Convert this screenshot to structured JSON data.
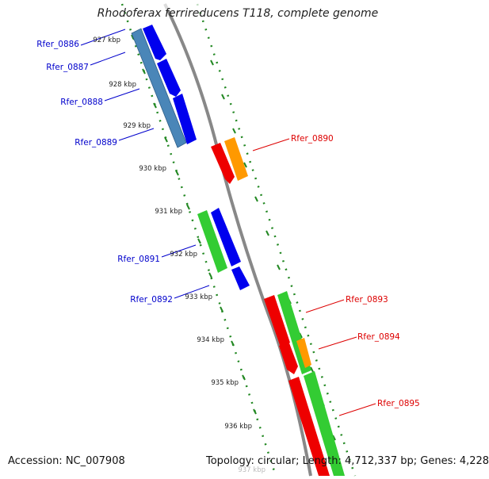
{
  "header": {
    "title": "Rhodoferax ferrireducens T118, complete genome"
  },
  "footer": {
    "accession": "Accession: NC_007908",
    "stats": "Topology: circular; Length: 4,712,337 bp; Genes: 4,228"
  },
  "scale_ticks": [
    {
      "label": "927 kbp"
    },
    {
      "label": "928 kbp"
    },
    {
      "label": "929 kbp"
    },
    {
      "label": "930 kbp"
    },
    {
      "label": "931 kbp"
    },
    {
      "label": "932 kbp"
    },
    {
      "label": "933 kbp"
    },
    {
      "label": "934 kbp"
    },
    {
      "label": "935 kbp"
    },
    {
      "label": "936 kbp"
    },
    {
      "label": "937 kbp"
    }
  ],
  "genes_left": [
    {
      "label": "Rfer_0886"
    },
    {
      "label": "Rfer_0887"
    },
    {
      "label": "Rfer_0888"
    },
    {
      "label": "Rfer_0889"
    },
    {
      "label": "Rfer_0891"
    },
    {
      "label": "Rfer_0892"
    }
  ],
  "genes_right": [
    {
      "label": "Rfer_0890"
    },
    {
      "label": "Rfer_0893"
    },
    {
      "label": "Rfer_0894"
    },
    {
      "label": "Rfer_0895"
    }
  ],
  "colors": {
    "reverse_label": "#0000cc",
    "forward_label": "#dd0000",
    "blue_cds": "#0000ee",
    "steel_cds": "#4a86b8",
    "green_cds": "#33cc33",
    "red_cds": "#ee0000",
    "orange_cds": "#ff9900",
    "backbone": "#888888",
    "tick": "#228822"
  }
}
